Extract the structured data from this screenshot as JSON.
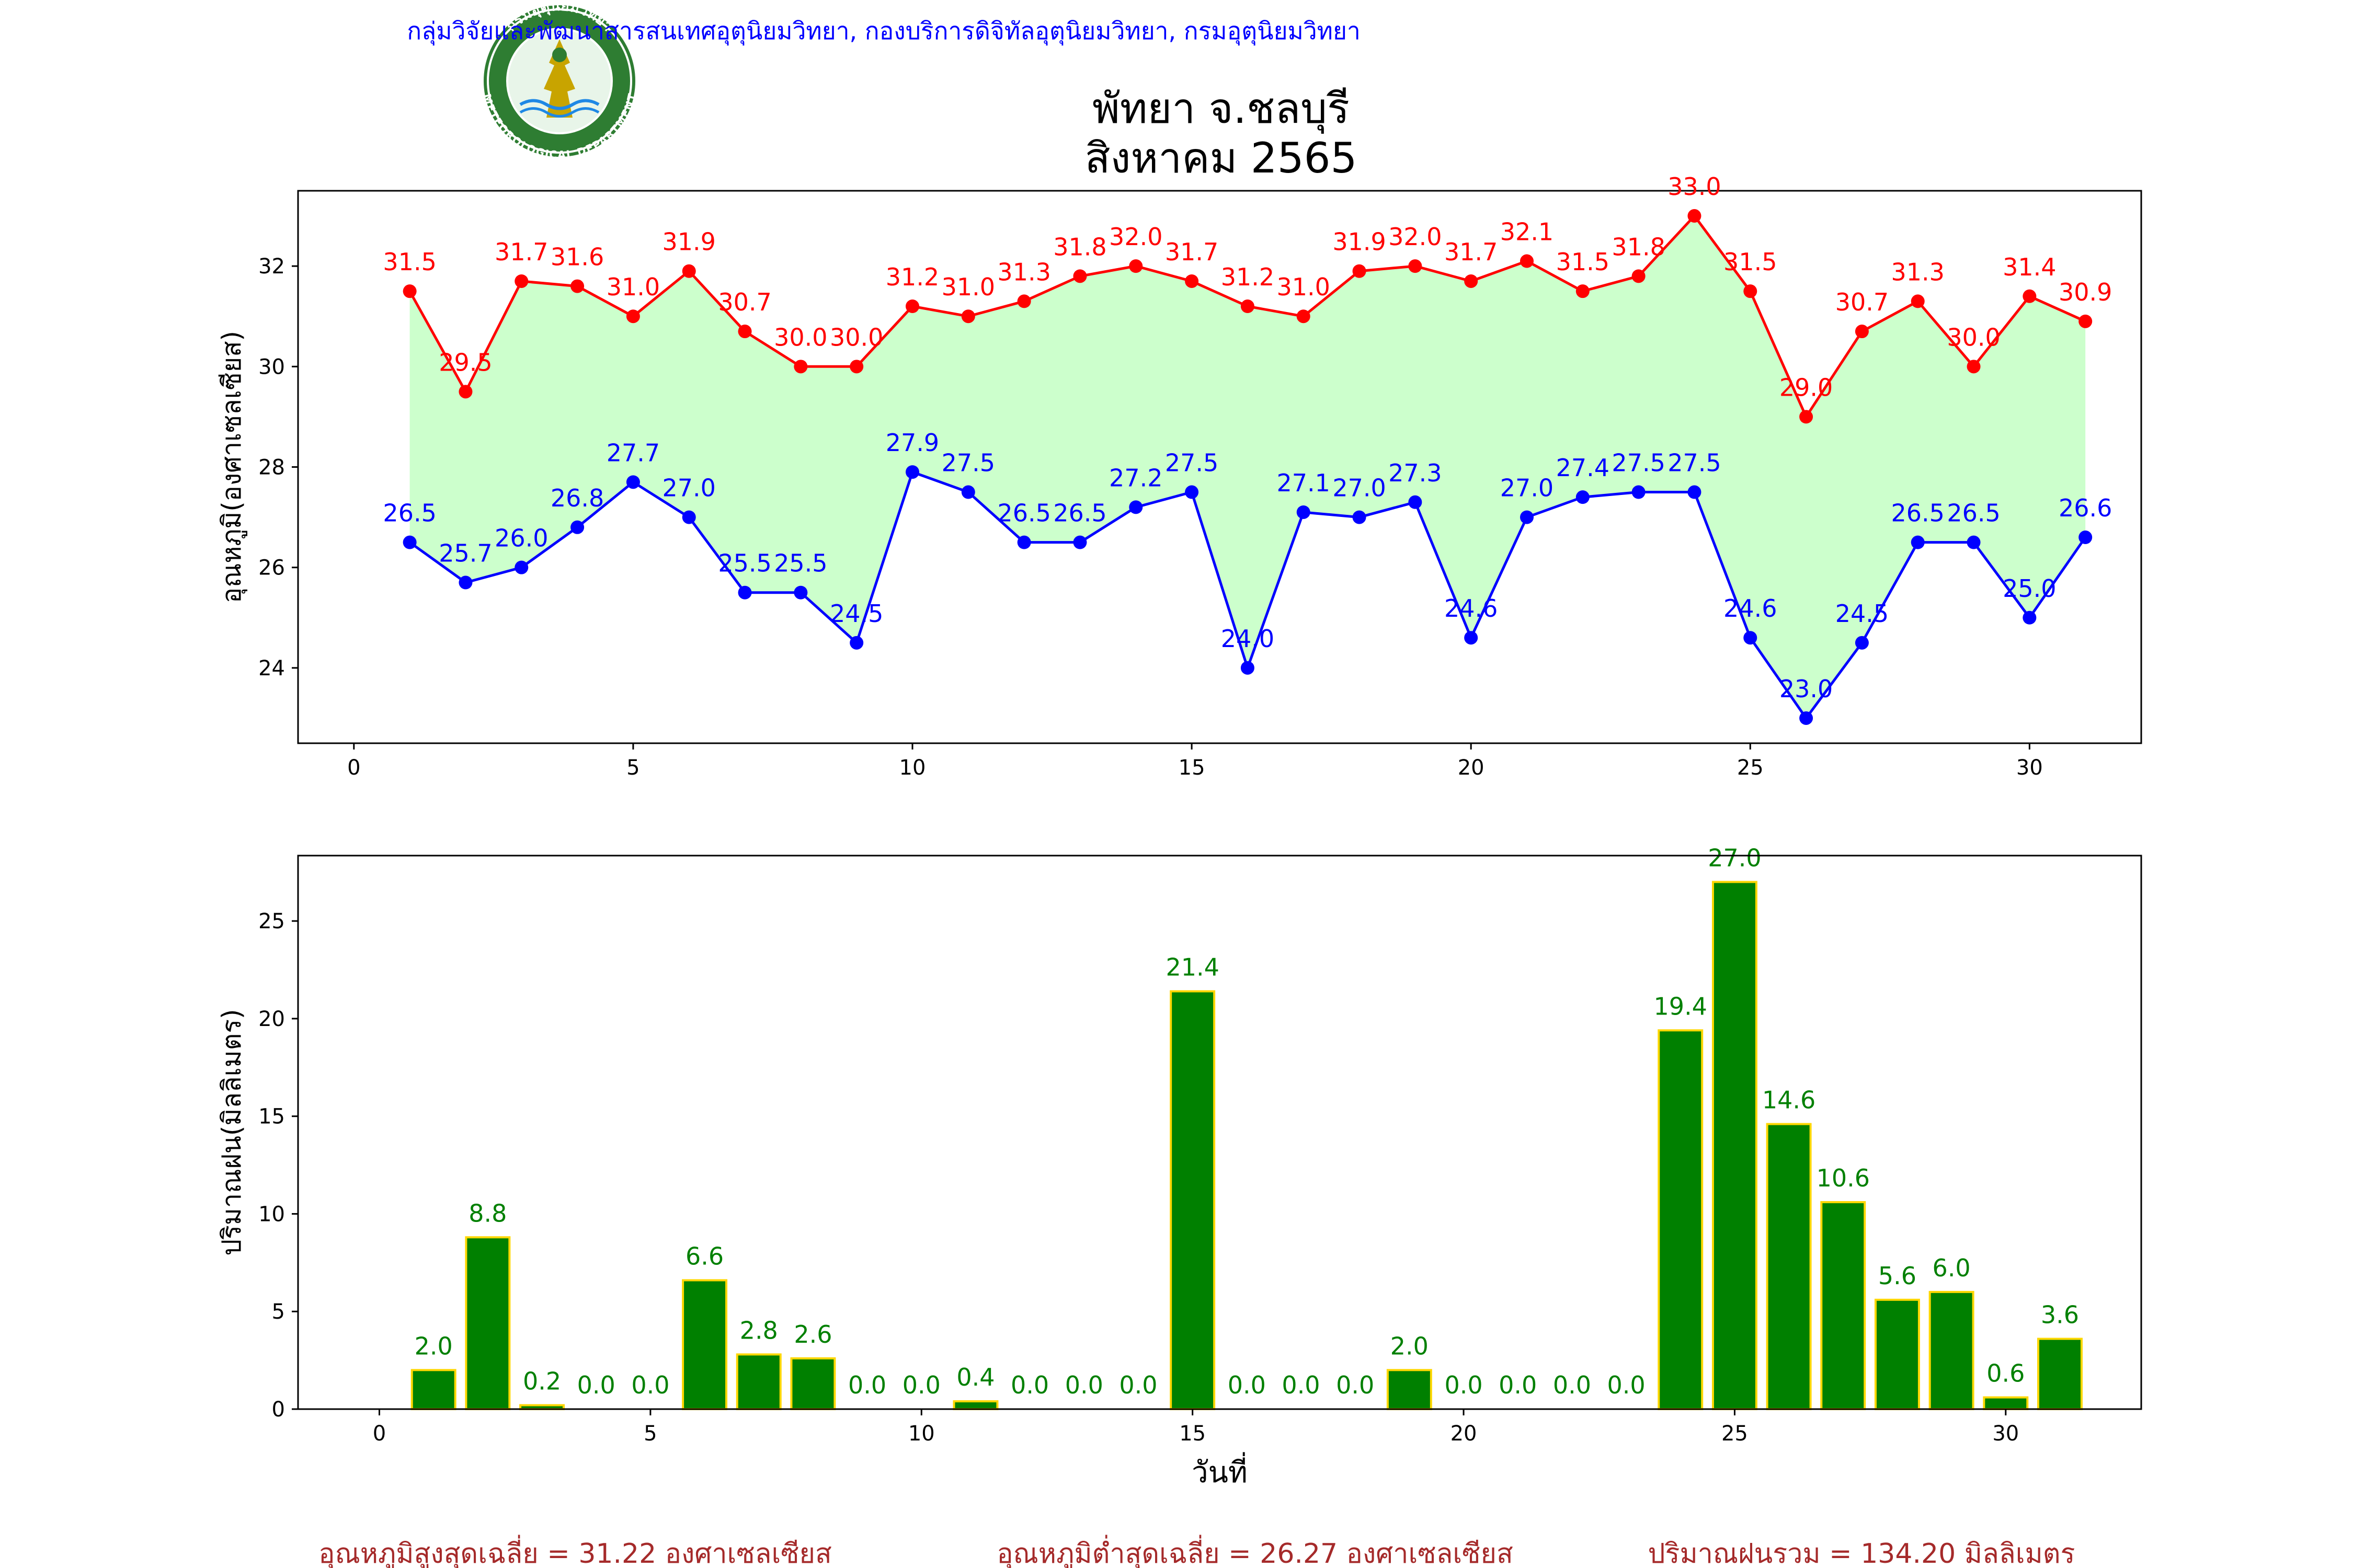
{
  "header": {
    "org_line": "กลุ่มวิจัยและพัฒนาสารสนเทศอุตุนิยมวิทยา, กองบริการดิจิทัลอุตุนิยมวิทยา, กรมอุตุนิยมวิทยา",
    "title_line1": "พัทยา จ.ชลบุรี",
    "title_line2": "สิงหาคม 2565"
  },
  "logo": {
    "top_text": "กรมอุตุนิยมวิทยา",
    "bottom_text": "METEOROLOGICAL DEPARTMENT"
  },
  "colors": {
    "max_series": "#ff0000",
    "min_series": "#0000ff",
    "fill_between": "#ccffcc",
    "rain_bar": "#008000",
    "rain_bar_edge": "#ffd700",
    "rain_label": "#008000",
    "header_text": "#0000ff",
    "summary_text": "#a52a2a"
  },
  "footer": {
    "avg_max": "อุณหภูมิสูงสุดเฉลี่ย = 31.22 องศาเซลเซียส",
    "avg_min": "อุณหภูมิต่ำสุดเฉลี่ย = 26.27 องศาเซลเซียส",
    "total_rain": "ปริมาณฝนรวม = 134.20 มิลลิเมตร"
  },
  "chart_data": [
    {
      "type": "line",
      "ylabel": "อุณหภูมิ(องศาเซลเซียส)",
      "xlabel": "",
      "xlim": [
        -1,
        32
      ],
      "ylim": [
        22.5,
        33.5
      ],
      "xticks": [
        0,
        5,
        10,
        15,
        20,
        25,
        30
      ],
      "yticks": [
        24,
        26,
        28,
        30,
        32
      ],
      "grid": false,
      "x": [
        1,
        2,
        3,
        4,
        5,
        6,
        7,
        8,
        9,
        10,
        11,
        12,
        13,
        14,
        15,
        16,
        17,
        18,
        19,
        20,
        21,
        22,
        23,
        24,
        25,
        26,
        27,
        28,
        29,
        30,
        31
      ],
      "series": [
        {
          "values": [
            31.5,
            29.5,
            31.7,
            31.6,
            31.0,
            31.9,
            30.7,
            30.0,
            30.0,
            31.2,
            31.0,
            31.3,
            31.8,
            32.0,
            31.7,
            31.2,
            31.0,
            31.9,
            32.0,
            31.7,
            32.1,
            31.5,
            31.8,
            33.0,
            31.5,
            29.0,
            30.7,
            31.3,
            30.0,
            31.4,
            30.9
          ]
        },
        {
          "values": [
            26.5,
            25.7,
            26.0,
            26.8,
            27.7,
            27.0,
            25.5,
            25.5,
            24.5,
            27.9,
            27.5,
            26.5,
            26.5,
            27.2,
            27.5,
            24.0,
            27.1,
            27.0,
            27.3,
            24.6,
            27.0,
            27.4,
            27.5,
            27.5,
            24.6,
            23.0,
            24.5,
            26.5,
            26.5,
            25.0,
            26.6
          ]
        }
      ]
    },
    {
      "type": "bar",
      "ylabel": "ปริมาณฝน(มิลลิเมตร)",
      "xlabel": "วันที่",
      "xlim": [
        -1.5,
        32.5
      ],
      "ylim": [
        0,
        28.35
      ],
      "xticks": [
        0,
        5,
        10,
        15,
        20,
        25,
        30
      ],
      "yticks": [
        0,
        5,
        10,
        15,
        20,
        25
      ],
      "grid": false,
      "categories": [
        1,
        2,
        3,
        4,
        5,
        6,
        7,
        8,
        9,
        10,
        11,
        12,
        13,
        14,
        15,
        16,
        17,
        18,
        19,
        20,
        21,
        22,
        23,
        24,
        25,
        26,
        27,
        28,
        29,
        30,
        31
      ],
      "values": [
        2.0,
        8.8,
        0.2,
        0.0,
        0.0,
        6.6,
        2.8,
        2.6,
        0.0,
        0.0,
        0.4,
        0.0,
        0.0,
        0.0,
        21.4,
        0.0,
        0.0,
        0.0,
        2.0,
        0.0,
        0.0,
        0.0,
        0.0,
        19.4,
        27.0,
        14.6,
        10.6,
        5.6,
        6.0,
        0.6,
        3.6
      ]
    }
  ]
}
